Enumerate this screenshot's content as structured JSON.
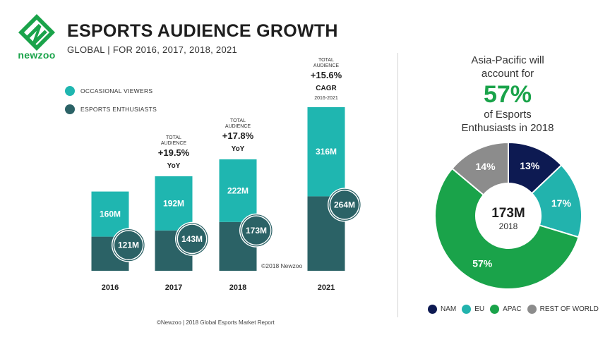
{
  "brand": {
    "logo_text": "newzoo"
  },
  "header": {
    "title": "ESPORTS AUDIENCE GROWTH",
    "subtitle": "GLOBAL | FOR 2016, 2017, 2018, 2021"
  },
  "colors": {
    "occasional": "#1fb6b0",
    "enthusiasts": "#2b6266",
    "nam": "#0d1a52",
    "eu": "#22b3ad",
    "apac": "#1aa34a",
    "rest": "#8c8c8c"
  },
  "legend_left": [
    {
      "label": "OCCASIONAL VIEWERS",
      "color": "#1fb6b0"
    },
    {
      "label": "ESPORTS ENTHUSIASTS",
      "color": "#2b6266"
    }
  ],
  "chart_data": [
    {
      "type": "bar",
      "stacked": true,
      "categories": [
        "2016",
        "2017",
        "2018",
        "2021"
      ],
      "series": [
        {
          "name": "ESPORTS ENTHUSIASTS",
          "values": [
            121,
            143,
            173,
            264
          ],
          "labels": [
            "121M",
            "143M",
            "173M",
            "264M"
          ]
        },
        {
          "name": "OCCASIONAL VIEWERS",
          "values": [
            160,
            192,
            222,
            316
          ],
          "labels": [
            "160M",
            "192M",
            "222M",
            "316M"
          ]
        }
      ],
      "annotations": [
        null,
        {
          "top": "TOTAL",
          "top2": "AUDIENCE",
          "value": "+19.5%",
          "unit": "YoY",
          "sub": ""
        },
        {
          "top": "TOTAL",
          "top2": "AUDIENCE",
          "value": "+17.8%",
          "unit": "YoY",
          "sub": ""
        },
        {
          "top": "TOTAL",
          "top2": "AUDIENCE",
          "value": "+15.6%",
          "unit": "CAGR",
          "sub": "2016-2021"
        }
      ]
    },
    {
      "type": "pie",
      "donut": true,
      "center_value": "173M",
      "center_label": "2018",
      "slices": [
        {
          "name": "NAM",
          "value": 13,
          "label": "13%",
          "color": "#0d1a52"
        },
        {
          "name": "EU",
          "value": 17,
          "label": "17%",
          "color": "#22b3ad"
        },
        {
          "name": "APAC",
          "value": 57,
          "label": "57%",
          "color": "#1aa34a"
        },
        {
          "name": "REST OF WORLD",
          "value": 14,
          "label": "14%",
          "color": "#8c8c8c"
        }
      ]
    }
  ],
  "headline": {
    "line1": "Asia-Pacific will",
    "line2": "account for",
    "big": "57%",
    "line3": "of Esports",
    "line4": "Enthusiasts in 2018"
  },
  "notes": {
    "chart_copyright": "©2018 Newzoo",
    "footer": "©Newzoo | 2018 Global Esports Market Report"
  }
}
